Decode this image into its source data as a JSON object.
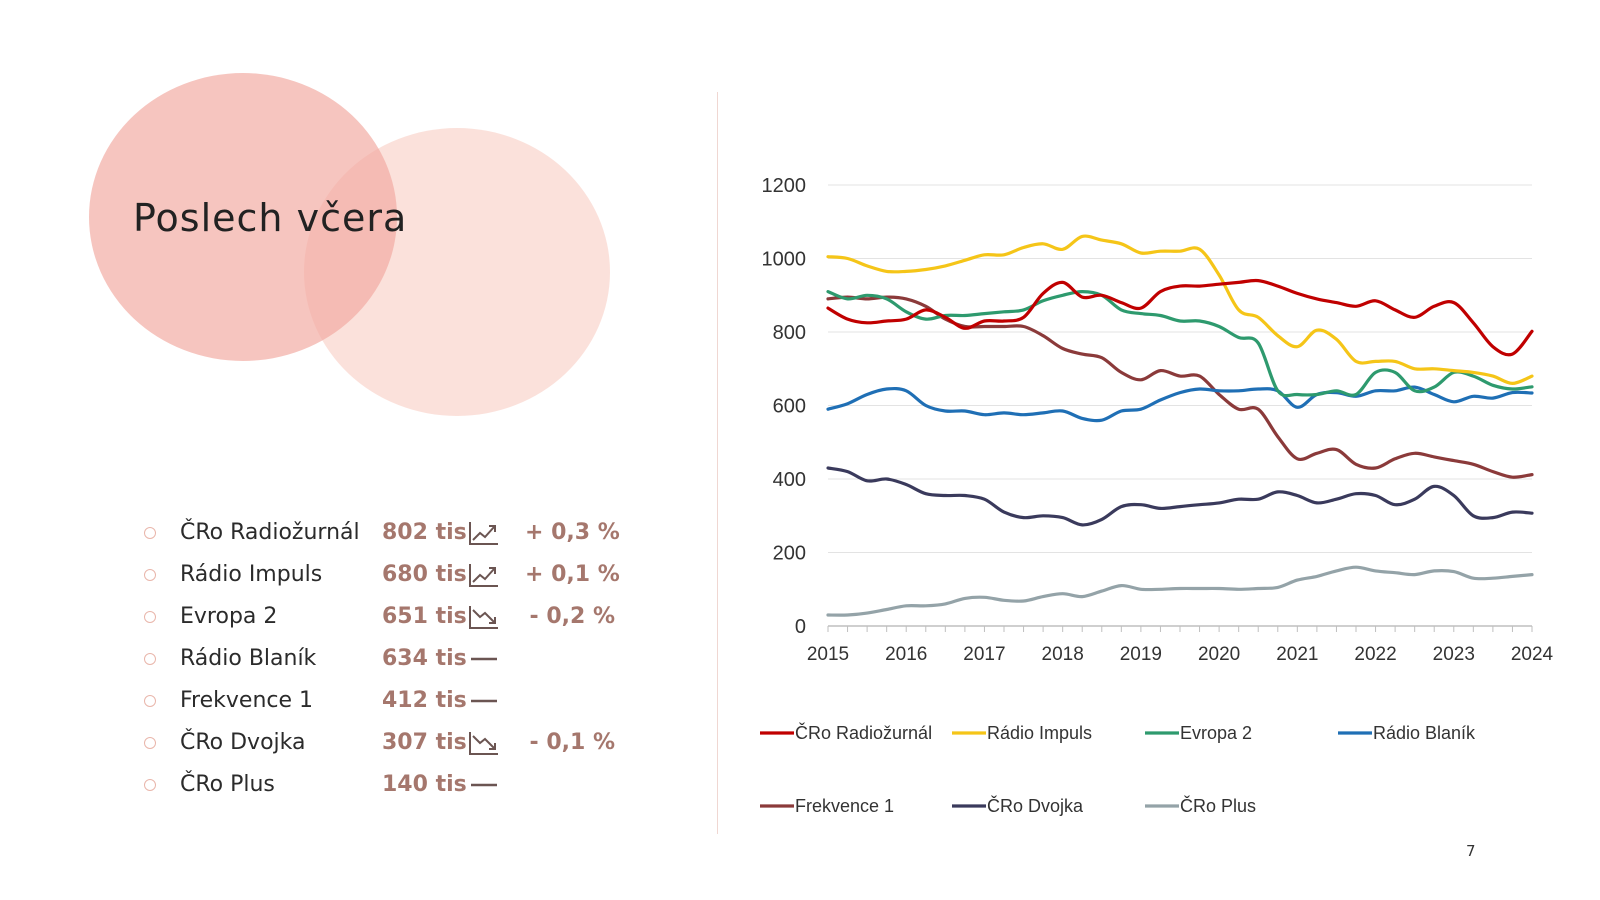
{
  "slide": {
    "title": "Poslech včera",
    "page_number": "7"
  },
  "colors": {
    "circle_front": "#f2aaa0",
    "circle_back": "#f7c8bd",
    "value_text": "#a5776d",
    "bullet": "#e9b6ab"
  },
  "stations_list": [
    {
      "name": "ČRo Radiožurnál",
      "value": "802 tis",
      "trend_icon": "trend-up-icon",
      "change": "+ 0,3 %"
    },
    {
      "name": "Rádio Impuls",
      "value": "680 tis",
      "trend_icon": "trend-up-icon",
      "change": "+ 0,1 %"
    },
    {
      "name": "Evropa 2",
      "value": "651 tis",
      "trend_icon": "trend-down-icon",
      "change": "- 0,2 %"
    },
    {
      "name": "Rádio Blaník",
      "value": "634 tis",
      "trend_icon": "trend-flat-icon",
      "change": ""
    },
    {
      "name": "Frekvence 1",
      "value": "412 tis",
      "trend_icon": "trend-flat-icon",
      "change": ""
    },
    {
      "name": "ČRo Dvojka",
      "value": "307 tis",
      "trend_icon": "trend-down-icon",
      "change": "- 0,1 %"
    },
    {
      "name": "ČRo Plus",
      "value": "140 tis",
      "trend_icon": "trend-flat-icon",
      "change": ""
    }
  ],
  "chart_data": {
    "type": "line",
    "title": "",
    "xlabel": "",
    "ylabel": "",
    "ylim": [
      0,
      1200
    ],
    "y_ticks": [
      0,
      200,
      400,
      600,
      800,
      1000,
      1200
    ],
    "xlim": [
      2015,
      2024
    ],
    "x_ticks": [
      2015,
      2016,
      2017,
      2018,
      2019,
      2020,
      2021,
      2022,
      2023,
      2024
    ],
    "grid": true,
    "legend_position": "bottom",
    "x": [
      2015.0,
      2015.25,
      2015.5,
      2015.75,
      2016.0,
      2016.25,
      2016.5,
      2016.75,
      2017.0,
      2017.25,
      2017.5,
      2017.75,
      2018.0,
      2018.25,
      2018.5,
      2018.75,
      2019.0,
      2019.25,
      2019.5,
      2019.75,
      2020.0,
      2020.25,
      2020.5,
      2020.75,
      2021.0,
      2021.25,
      2021.5,
      2021.75,
      2022.0,
      2022.25,
      2022.5,
      2022.75,
      2023.0,
      2023.25,
      2023.5,
      2023.75,
      2024.0
    ],
    "series": [
      {
        "name": "ČRo Radiožurnál",
        "color": "#c00000",
        "values": [
          865,
          835,
          825,
          830,
          835,
          860,
          840,
          810,
          830,
          830,
          840,
          905,
          935,
          895,
          900,
          880,
          865,
          910,
          925,
          925,
          930,
          935,
          940,
          925,
          905,
          890,
          880,
          870,
          885,
          860,
          840,
          870,
          880,
          825,
          760,
          740,
          802
        ]
      },
      {
        "name": "Rádio Impuls",
        "color": "#f5c518",
        "values": [
          1005,
          1000,
          980,
          965,
          965,
          970,
          980,
          995,
          1010,
          1010,
          1030,
          1040,
          1025,
          1060,
          1050,
          1040,
          1015,
          1020,
          1020,
          1025,
          955,
          860,
          840,
          790,
          760,
          805,
          780,
          720,
          720,
          720,
          700,
          700,
          695,
          690,
          680,
          660,
          680
        ]
      },
      {
        "name": "Evropa 2",
        "color": "#2e9a6e",
        "values": [
          910,
          890,
          900,
          890,
          855,
          835,
          845,
          845,
          850,
          855,
          860,
          885,
          900,
          910,
          900,
          860,
          850,
          845,
          830,
          830,
          815,
          785,
          770,
          640,
          630,
          630,
          640,
          630,
          690,
          690,
          640,
          650,
          690,
          680,
          655,
          645,
          651
        ]
      },
      {
        "name": "Rádio Blaník",
        "color": "#1f6fb5",
        "values": [
          590,
          605,
          630,
          645,
          640,
          600,
          585,
          585,
          575,
          580,
          575,
          580,
          585,
          565,
          560,
          585,
          590,
          615,
          635,
          645,
          640,
          640,
          645,
          640,
          595,
          630,
          635,
          625,
          640,
          640,
          650,
          630,
          610,
          625,
          620,
          635,
          634
        ]
      },
      {
        "name": "Frekvence 1",
        "color": "#8b3a3a",
        "values": [
          890,
          895,
          890,
          895,
          890,
          870,
          835,
          815,
          815,
          815,
          815,
          790,
          755,
          740,
          730,
          690,
          670,
          695,
          680,
          680,
          630,
          590,
          590,
          515,
          455,
          470,
          480,
          440,
          430,
          455,
          470,
          460,
          450,
          440,
          420,
          405,
          412
        ]
      },
      {
        "name": "ČRo Dvojka",
        "color": "#3a3a5c",
        "values": [
          430,
          420,
          395,
          400,
          385,
          360,
          355,
          355,
          345,
          310,
          295,
          300,
          295,
          275,
          290,
          325,
          330,
          320,
          325,
          330,
          335,
          345,
          345,
          365,
          355,
          335,
          345,
          360,
          355,
          330,
          345,
          380,
          355,
          300,
          295,
          310,
          307
        ]
      },
      {
        "name": "ČRo Plus",
        "color": "#94a3a8",
        "values": [
          30,
          30,
          35,
          45,
          55,
          55,
          60,
          75,
          78,
          70,
          68,
          80,
          88,
          80,
          95,
          110,
          100,
          100,
          102,
          102,
          102,
          100,
          102,
          105,
          125,
          135,
          150,
          160,
          150,
          145,
          140,
          150,
          148,
          130,
          130,
          135,
          140
        ]
      }
    ]
  }
}
